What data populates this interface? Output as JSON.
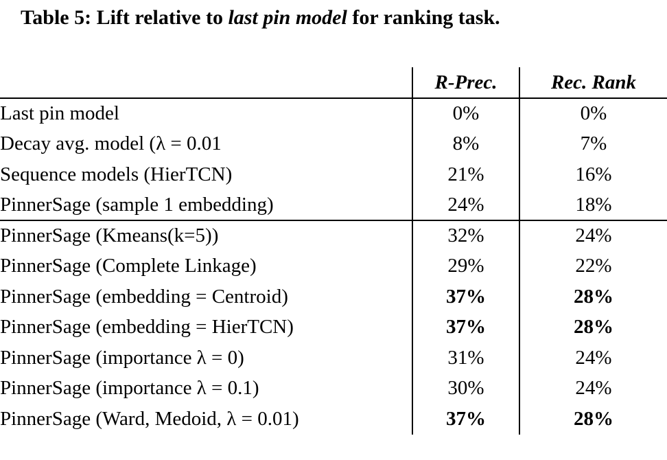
{
  "caption": {
    "prefix": "Table 5: Lift relative to ",
    "emphasis": "last pin model",
    "suffix": " for ranking task."
  },
  "table": {
    "col_headers": {
      "r_prec": "R-Prec.",
      "rec_rank": "Rec. Rank"
    },
    "rows": [
      {
        "label": "Last pin model",
        "r_prec": "0%",
        "rec_rank": "0%",
        "bold": false
      },
      {
        "label": "Decay avg. model (λ = 0.01",
        "r_prec": "8%",
        "rec_rank": "7%",
        "bold": false
      },
      {
        "label": "Sequence models (HierTCN)",
        "r_prec": "21%",
        "rec_rank": "16%",
        "bold": false
      },
      {
        "label": "PinnerSage (sample 1 embedding)",
        "r_prec": "24%",
        "rec_rank": "18%",
        "bold": false
      },
      {
        "label": "PinnerSage (Kmeans(k=5))",
        "r_prec": "32%",
        "rec_rank": "24%",
        "bold": false
      },
      {
        "label": "PinnerSage (Complete Linkage)",
        "r_prec": "29%",
        "rec_rank": "22%",
        "bold": false
      },
      {
        "label": "PinnerSage (embedding = Centroid)",
        "r_prec": "37%",
        "rec_rank": "28%",
        "bold": true
      },
      {
        "label": "PinnerSage (embedding = HierTCN)",
        "r_prec": "37%",
        "rec_rank": "28%",
        "bold": true
      },
      {
        "label": "PinnerSage (importance λ = 0)",
        "r_prec": "31%",
        "rec_rank": "24%",
        "bold": false
      },
      {
        "label": "PinnerSage (importance λ = 0.1)",
        "r_prec": "30%",
        "rec_rank": "24%",
        "bold": false
      },
      {
        "label": "PinnerSage (Ward, Medoid, λ = 0.01)",
        "r_prec": "37%",
        "rec_rank": "28%",
        "bold": true
      }
    ]
  }
}
